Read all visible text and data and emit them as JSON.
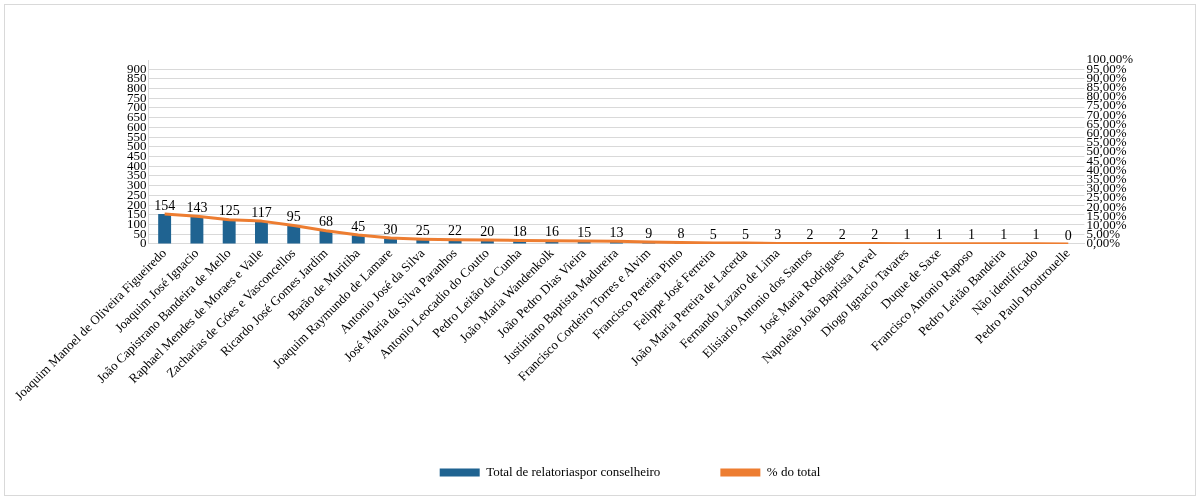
{
  "chart_data": {
    "type": "bar",
    "categories": [
      "Joaquim Manoel de Oliveira Figueiredo",
      "Joaquim José Ignacio",
      "João Capistrano Bandeira de Mello",
      "Raphael Mendes de Moraes e Valle",
      "Zacharias de Góes e Vasconcellos",
      "Ricardo José Gomes Jardim",
      "Barão de Muritiba",
      "Joaquim Raymundo de Lamare",
      "Antonio José da Silva",
      "José Maria da Silva Paranhos",
      "Antonio Leocadio do Coutto",
      "Pedro Leitão da Cunha",
      "João Maria Wandenkolk",
      "João Pedro Dias Vieira",
      "Justiniano Baptista Madureira",
      "Francisco Cordeiro Torres e Alvim",
      "Francisco Pereira Pinto",
      "Felippe José Ferreira",
      "João Maria Pereira de Lacerda",
      "Fernando Lazaro de Lima",
      "Elisiario Antonio dos Santos",
      "José Maria Rodrigues",
      "Napoleão João Baptista Level",
      "Diogo Ignacio Tavares",
      "Duque de Saxe",
      "Francisco Antonio Raposo",
      "Pedro Leitão Bandeira",
      "Não identificado",
      "Pedro Paulo Boutrouelle"
    ],
    "series": [
      {
        "name": "Total de relatoriaspor conselheiro",
        "color": "#1f6391",
        "values": [
          154,
          143,
          125,
          117,
          95,
          68,
          45,
          30,
          25,
          22,
          20,
          18,
          16,
          15,
          13,
          9,
          8,
          5,
          5,
          3,
          2,
          2,
          2,
          1,
          1,
          1,
          1,
          1,
          0
        ],
        "value_labels": [
          "154",
          "143",
          "125",
          "117",
          "95",
          "68",
          "45",
          "30",
          "25",
          "22",
          "20",
          "18",
          "16",
          "15",
          "13",
          "9",
          "8",
          "5",
          "5",
          "3",
          "2",
          "2",
          "2",
          "1",
          "1",
          "1",
          "1",
          "1",
          "0"
        ]
      },
      {
        "name": "% do total",
        "type": "line",
        "axis": "y2",
        "color": "#ed7d31",
        "values": [
          16.3,
          15.1,
          13.2,
          12.4,
          10.0,
          7.2,
          4.8,
          3.2,
          2.6,
          2.3,
          2.1,
          1.9,
          1.7,
          1.6,
          1.4,
          1.0,
          0.8,
          0.5,
          0.5,
          0.3,
          0.2,
          0.2,
          0.2,
          0.1,
          0.1,
          0.1,
          0.1,
          0.1,
          0
        ]
      }
    ],
    "ylim": [
      0,
      947
    ],
    "yticks": [
      0,
      50,
      100,
      150,
      200,
      250,
      300,
      350,
      400,
      450,
      500,
      550,
      600,
      650,
      700,
      750,
      800,
      850,
      900
    ],
    "y2lim": [
      0,
      100
    ],
    "y2ticks": [
      {
        "value": 0,
        "label": "0,00%"
      },
      {
        "value": 5,
        "label": "5,00%"
      },
      {
        "value": 10,
        "label": "10,00%"
      },
      {
        "value": 15,
        "label": "15,00%"
      },
      {
        "value": 20,
        "label": "20,00%"
      },
      {
        "value": 25,
        "label": "25,00%"
      },
      {
        "value": 30,
        "label": "30,00%"
      },
      {
        "value": 35,
        "label": "35,00%"
      },
      {
        "value": 40,
        "label": "40,00%"
      },
      {
        "value": 45,
        "label": "45,00%"
      },
      {
        "value": 50,
        "label": "50,00%"
      },
      {
        "value": 55,
        "label": "55,00%"
      },
      {
        "value": 60,
        "label": "60,00%"
      },
      {
        "value": 65,
        "label": "65,00%"
      },
      {
        "value": 70,
        "label": "70,00%"
      },
      {
        "value": 75,
        "label": "75,00%"
      },
      {
        "value": 80,
        "label": "80,00%"
      },
      {
        "value": 85,
        "label": "85,00%"
      },
      {
        "value": 90,
        "label": "90,00%"
      },
      {
        "value": 95,
        "label": "95,00%"
      },
      {
        "value": 100,
        "label": "100,00%"
      }
    ],
    "grid": "y",
    "legend": "bottom",
    "marker": "none",
    "line_style": "solid"
  }
}
